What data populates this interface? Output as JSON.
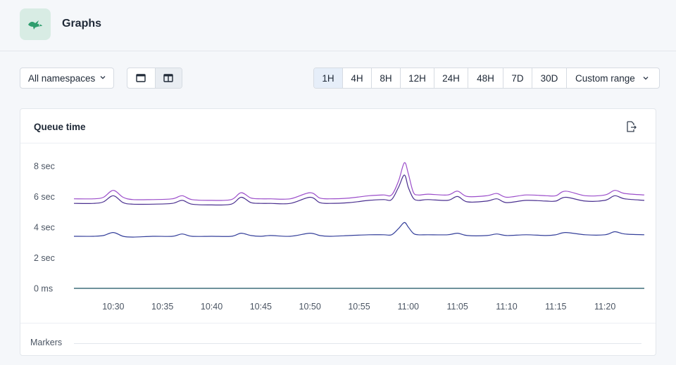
{
  "header": {
    "title": "Graphs",
    "logo_icon": "rocket-bird-logo"
  },
  "toolbar": {
    "namespace_select": {
      "value": "All namespaces"
    },
    "view_toggle": [
      {
        "icon": "single-column-icon"
      },
      {
        "icon": "two-column-icon",
        "active": true
      }
    ],
    "ranges": [
      {
        "label": "1H",
        "active": true
      },
      {
        "label": "4H"
      },
      {
        "label": "8H"
      },
      {
        "label": "12H"
      },
      {
        "label": "24H"
      },
      {
        "label": "48H"
      },
      {
        "label": "7D"
      },
      {
        "label": "30D"
      }
    ],
    "custom_range_label": "Custom range"
  },
  "panel": {
    "title": "Queue time",
    "markers_label": "Markers"
  },
  "colors": {
    "series_top": "#9b4dca",
    "series_mid": "#4a2f8f",
    "series_low": "#343f9a",
    "series_zero": "#3f6f7a",
    "accent_logo": "#2f9e6e"
  },
  "chart_data": {
    "type": "line",
    "ylim": [
      0,
      8.5
    ],
    "y_ticks": [
      {
        "label": "0 ms",
        "value": 0
      },
      {
        "label": "2 sec",
        "value": 2
      },
      {
        "label": "4 sec",
        "value": 4
      },
      {
        "label": "6 sec",
        "value": 6
      },
      {
        "label": "8 sec",
        "value": 8
      }
    ],
    "x_range": [
      "10:26",
      "11:24"
    ],
    "x_ticks": [
      "10:30",
      "10:35",
      "10:40",
      "10:45",
      "10:50",
      "10:55",
      "11:00",
      "11:05",
      "11:10",
      "11:15",
      "11:20"
    ],
    "x_minutes": [
      26,
      28,
      29,
      30,
      31,
      32,
      34,
      36,
      37,
      38,
      40,
      42,
      43,
      44,
      45,
      46,
      48,
      50,
      51,
      52,
      54,
      56,
      57.5,
      58.3,
      59,
      59.6,
      60,
      60.5,
      61,
      62,
      64,
      65,
      66,
      68,
      69,
      70,
      72,
      74,
      75,
      76,
      78,
      80,
      81,
      82,
      84
    ],
    "series": [
      {
        "values": [
          5.85,
          5.85,
          5.95,
          6.4,
          5.95,
          5.8,
          5.8,
          5.85,
          6.05,
          5.8,
          5.75,
          5.8,
          6.25,
          5.9,
          5.85,
          5.85,
          5.85,
          6.25,
          5.9,
          5.85,
          5.9,
          6.05,
          6.1,
          6.1,
          7.0,
          8.2,
          7.5,
          6.3,
          6.1,
          6.15,
          6.1,
          6.35,
          6.0,
          6.05,
          6.2,
          5.95,
          6.1,
          6.05,
          6.05,
          6.35,
          6.05,
          6.1,
          6.4,
          6.2,
          6.1
        ]
      },
      {
        "values": [
          5.55,
          5.55,
          5.65,
          6.05,
          5.6,
          5.5,
          5.5,
          5.55,
          5.75,
          5.5,
          5.45,
          5.5,
          5.95,
          5.6,
          5.55,
          5.55,
          5.55,
          5.95,
          5.6,
          5.55,
          5.6,
          5.75,
          5.8,
          5.8,
          6.6,
          7.4,
          6.6,
          5.9,
          5.75,
          5.8,
          5.75,
          6.0,
          5.65,
          5.7,
          5.85,
          5.6,
          5.75,
          5.7,
          5.7,
          5.95,
          5.7,
          5.75,
          6.05,
          5.85,
          5.75
        ]
      },
      {
        "values": [
          3.4,
          3.4,
          3.45,
          3.65,
          3.4,
          3.35,
          3.4,
          3.4,
          3.55,
          3.4,
          3.4,
          3.4,
          3.6,
          3.45,
          3.4,
          3.45,
          3.4,
          3.6,
          3.45,
          3.4,
          3.45,
          3.5,
          3.5,
          3.5,
          3.9,
          4.3,
          4.0,
          3.6,
          3.5,
          3.5,
          3.5,
          3.6,
          3.45,
          3.45,
          3.55,
          3.45,
          3.5,
          3.45,
          3.5,
          3.65,
          3.5,
          3.5,
          3.7,
          3.55,
          3.5
        ]
      },
      {
        "values": [
          0.0,
          0.0,
          0.0,
          0.0,
          0.0,
          0.0,
          0.0,
          0.0,
          0.0,
          0.0,
          0.0,
          0.0,
          0.0,
          0.0,
          0.0,
          0.0,
          0.0,
          0.0,
          0.0,
          0.0,
          0.0,
          0.0,
          0.0,
          0.0,
          0.0,
          0.0,
          0.0,
          0.0,
          0.0,
          0.0,
          0.0,
          0.0,
          0.0,
          0.0,
          0.0,
          0.0,
          0.0,
          0.0,
          0.0,
          0.0,
          0.0,
          0.0,
          0.0,
          0.0,
          0.0
        ]
      }
    ],
    "grid": false,
    "legend": "none"
  }
}
